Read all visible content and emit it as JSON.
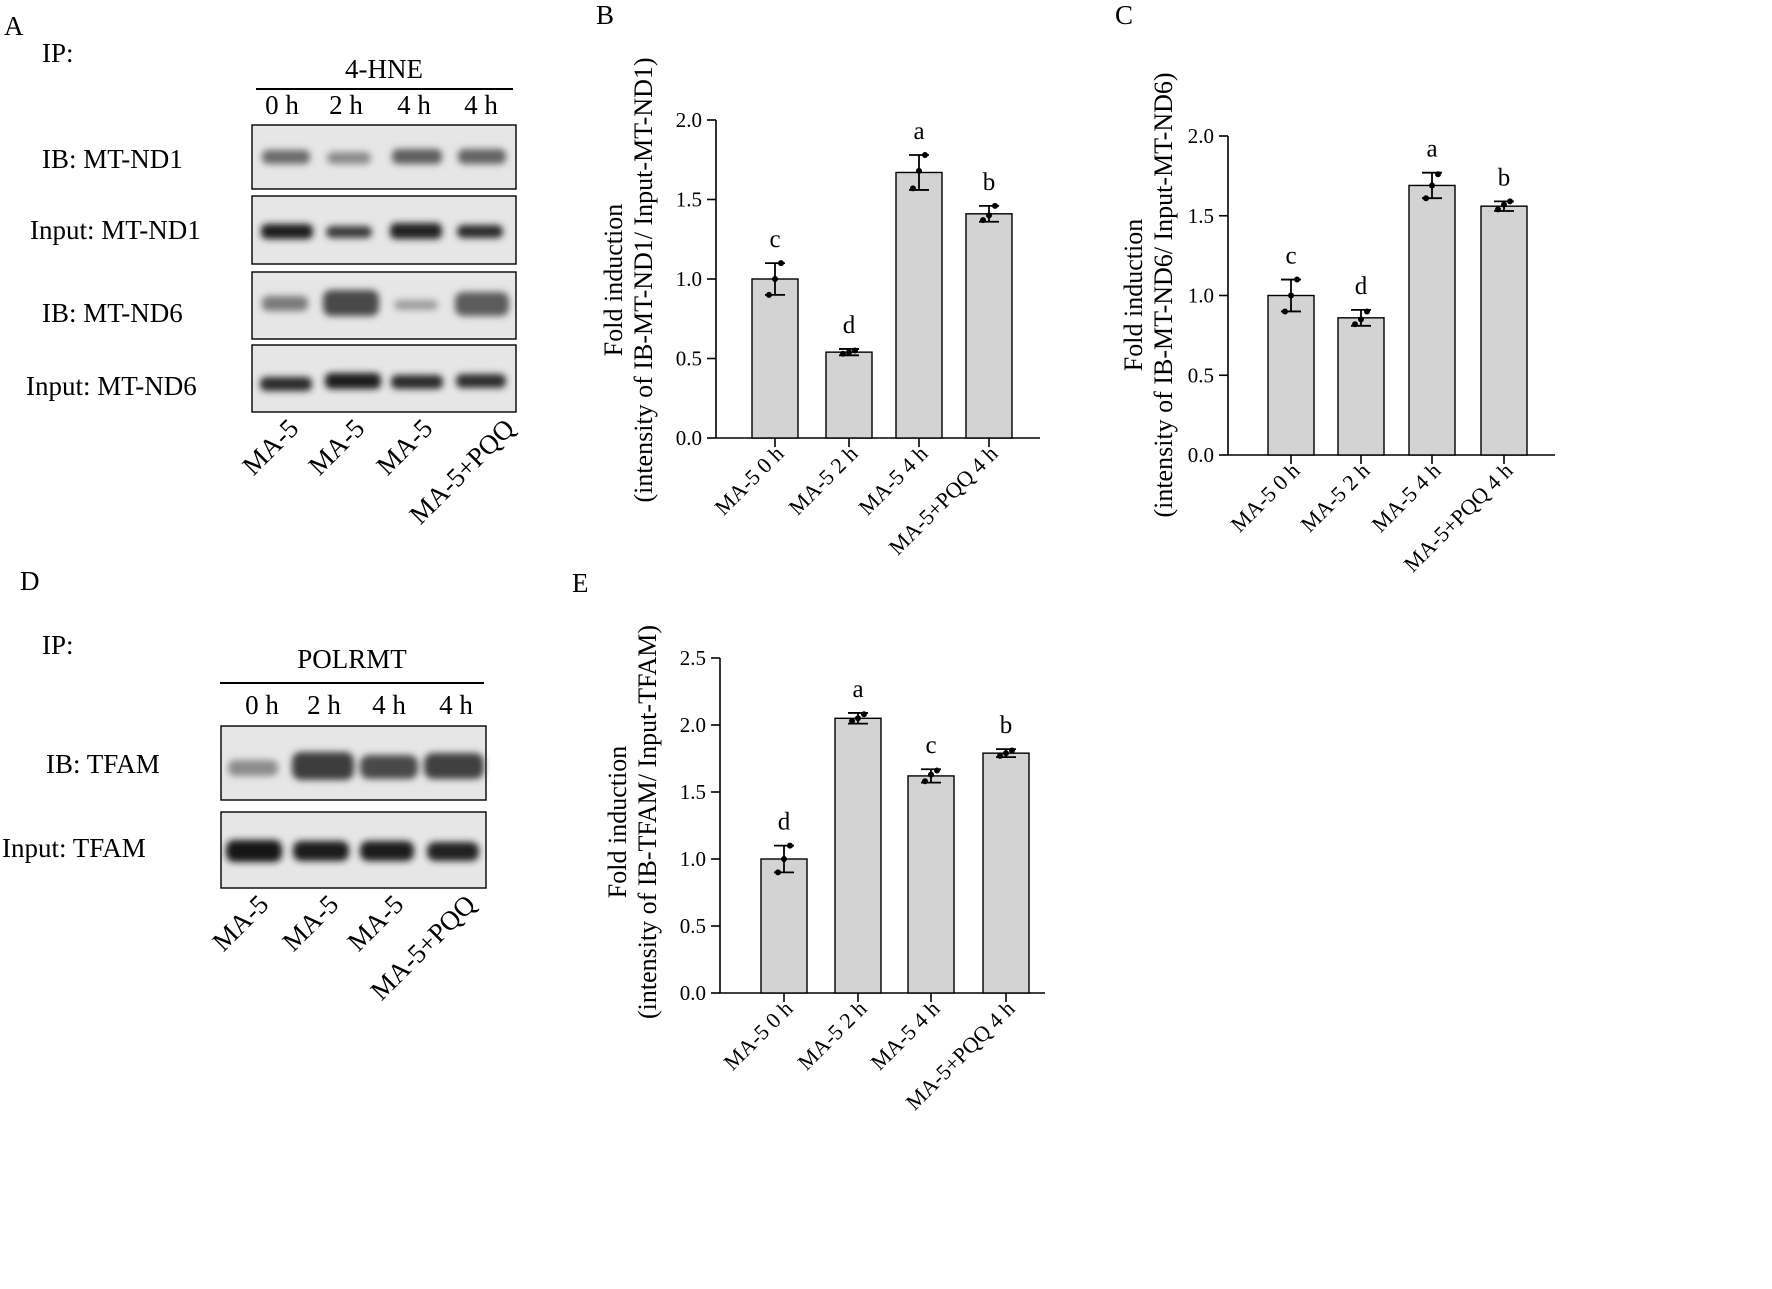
{
  "panels": {
    "A": {
      "letter": "A",
      "ip_label": "IP:",
      "antibody": "4-HNE",
      "times": [
        "0 h",
        "2 h",
        "4 h",
        "4 h"
      ],
      "rows": [
        {
          "label": "IB:  MT-ND1"
        },
        {
          "label": "Input: MT-ND1"
        },
        {
          "label": "IB: MT-ND6"
        },
        {
          "label": "Input: MT-ND6"
        }
      ],
      "lanes": [
        "MA-5",
        "MA-5",
        "MA-5",
        "MA-5+PQQ"
      ]
    },
    "D": {
      "letter": "D",
      "ip_label": "IP:",
      "antibody": "POLRMT",
      "times": [
        "0 h",
        "2 h",
        "4 h",
        "4 h"
      ],
      "rows": [
        {
          "label": "IB:  TFAM"
        },
        {
          "label": "Input: TFAM"
        }
      ],
      "lanes": [
        "MA-5",
        "MA-5",
        "MA-5",
        "MA-5+PQQ"
      ]
    }
  },
  "chart_data": [
    {
      "panel": "B",
      "type": "bar",
      "title": "",
      "ylabel_line1": "Fold induction",
      "ylabel_line2": "(intensity of IB-MT-ND1/ Input-MT-ND1)",
      "categories": [
        "MA-5 0 h",
        "MA-5 2 h",
        "MA-5 4 h",
        "MA-5+PQQ 4 h"
      ],
      "values": [
        1.0,
        0.54,
        1.67,
        1.41
      ],
      "error": [
        0.1,
        0.02,
        0.11,
        0.05
      ],
      "points": [
        [
          0.9,
          1.0,
          1.1
        ],
        [
          0.53,
          0.54,
          0.55
        ],
        [
          1.57,
          1.68,
          1.78
        ],
        [
          1.37,
          1.4,
          1.46
        ]
      ],
      "significance": [
        "c",
        "d",
        "a",
        "b"
      ],
      "ylim": [
        0,
        2.0
      ],
      "yticks": [
        "0.0",
        "0.5",
        "1.0",
        "1.5",
        "2.0"
      ],
      "bar_color": "#d3d3d3"
    },
    {
      "panel": "C",
      "type": "bar",
      "title": "",
      "ylabel_line1": "Fold induction",
      "ylabel_line2": "(intensity of IB-MT-ND6/ Input-MT-ND6)",
      "categories": [
        "MA-5 0 h",
        "MA-5 2 h",
        "MA-5 4 h",
        "MA-5+PQQ 4 h"
      ],
      "values": [
        1.0,
        0.86,
        1.69,
        1.56
      ],
      "error": [
        0.1,
        0.05,
        0.08,
        0.03
      ],
      "points": [
        [
          0.9,
          1.0,
          1.1
        ],
        [
          0.82,
          0.85,
          0.9
        ],
        [
          1.61,
          1.69,
          1.76
        ],
        [
          1.54,
          1.57,
          1.59
        ]
      ],
      "significance": [
        "c",
        "d",
        "a",
        "b"
      ],
      "ylim": [
        0,
        2.0
      ],
      "yticks": [
        "0.0",
        "0.5",
        "1.0",
        "1.5",
        "2.0"
      ],
      "bar_color": "#d3d3d3"
    },
    {
      "panel": "E",
      "type": "bar",
      "title": "",
      "ylabel_line1": "Fold induction",
      "ylabel_line2": "(intensity of IB-TFAM/ Input-TFAM)",
      "categories": [
        "MA-5 0 h",
        "MA-5 2 h",
        "MA-5 4 h",
        "MA-5+PQQ 4 h"
      ],
      "values": [
        1.0,
        2.05,
        1.62,
        1.79
      ],
      "error": [
        0.1,
        0.04,
        0.05,
        0.03
      ],
      "points": [
        [
          0.9,
          1.0,
          1.1
        ],
        [
          2.03,
          2.05,
          2.08
        ],
        [
          1.58,
          1.63,
          1.66
        ],
        [
          1.77,
          1.79,
          1.81
        ]
      ],
      "significance": [
        "d",
        "a",
        "c",
        "b"
      ],
      "ylim": [
        0,
        2.5
      ],
      "yticks": [
        "0.0",
        "0.5",
        "1.0",
        "1.5",
        "2.0",
        "2.5"
      ],
      "bar_color": "#d3d3d3"
    }
  ]
}
